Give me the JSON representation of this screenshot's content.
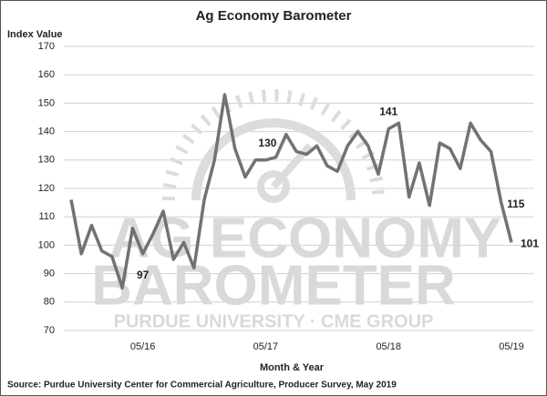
{
  "chart_data": {
    "type": "line",
    "title": "Ag Economy Barometer",
    "y_label": "Index Value",
    "x_label": "Month & Year",
    "source": "Source: Purdue University Center for Commercial Agriculture, Producer Survey, May 2019",
    "watermark": [
      "AG ECONOMY",
      "BAROMETER",
      "PURDUE UNIVERSITY  ·  CME GROUP"
    ],
    "categories": [
      null,
      null,
      null,
      null,
      null,
      null,
      null,
      "05/16",
      null,
      null,
      null,
      null,
      null,
      null,
      null,
      null,
      null,
      null,
      null,
      "05/17",
      null,
      null,
      null,
      null,
      null,
      null,
      null,
      null,
      null,
      null,
      null,
      "05/18",
      null,
      null,
      null,
      null,
      null,
      null,
      null,
      null,
      null,
      null,
      null,
      "05/19"
    ],
    "series": [
      {
        "name": "Index Value",
        "color": "#767171",
        "values": [
          116,
          97,
          107,
          98,
          96,
          85,
          106,
          97,
          104,
          112,
          95,
          101,
          92,
          116,
          130,
          153,
          134,
          124,
          130,
          130,
          131,
          139,
          133,
          132,
          135,
          128,
          126,
          135,
          140,
          135,
          125,
          141,
          143,
          117,
          129,
          114,
          136,
          134,
          127,
          143,
          137,
          133,
          115,
          101
        ]
      }
    ],
    "ylim": [
      70,
      170
    ],
    "yticks": [
      70,
      80,
      90,
      100,
      110,
      120,
      130,
      140,
      150,
      160,
      170
    ],
    "grid": true
  }
}
